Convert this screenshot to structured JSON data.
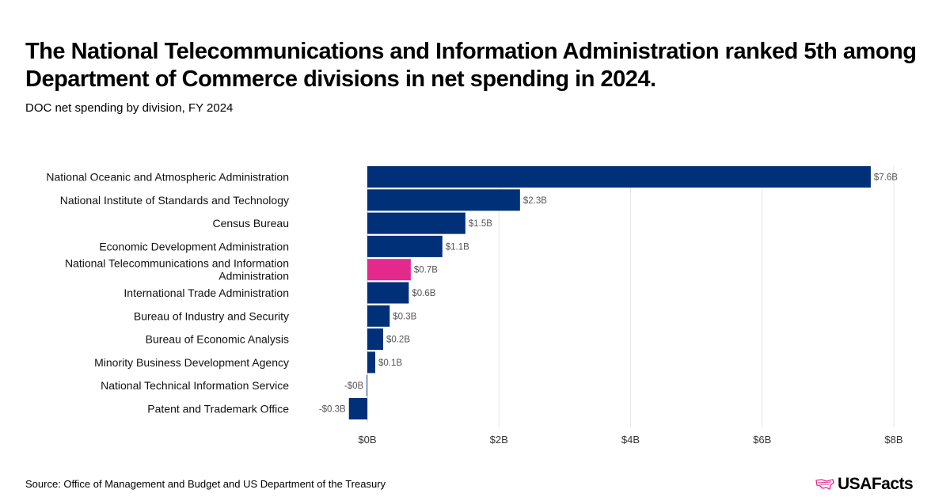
{
  "title": "The National Telecommunications and Information Administration ranked 5th among Department of Commerce divisions in net spending in 2024.",
  "subtitle": "DOC net spending by division, FY 2024",
  "source": "Source: Office of Management and Budget and US Department of the Treasury",
  "logo_text": "USAFacts",
  "colors": {
    "bar": "#003078",
    "highlight": "#e4298c",
    "grid": "#e6e6e6"
  },
  "chart_data": {
    "type": "bar",
    "orientation": "horizontal",
    "categories": [
      "National Oceanic and Atmospheric Administration",
      "National Institute of Standards and Technology",
      "Census Bureau",
      "Economic Development Administration",
      "National Telecommunications and Information Administration",
      "International Trade Administration",
      "Bureau of Industry and Security",
      "Bureau of Economic Analysis",
      "Minority Business Development Agency",
      "National Technical Information Service",
      "Patent and Trademark Office"
    ],
    "values": [
      7.65,
      2.32,
      1.49,
      1.14,
      0.66,
      0.63,
      0.34,
      0.24,
      0.12,
      -0.01,
      -0.28
    ],
    "data_labels": [
      "$7.6B",
      "$2.3B",
      "$1.5B",
      "$1.1B",
      "$0.7B",
      "$0.6B",
      "$0.3B",
      "$0.2B",
      "$0.1B",
      "-$0B",
      "-$0.3B"
    ],
    "highlight_index": 4,
    "xlim": [
      -0.3,
      8
    ],
    "xticks": [
      0,
      2,
      4,
      6,
      8
    ],
    "xtick_labels": [
      "$0B",
      "$2B",
      "$4B",
      "$6B",
      "$8B"
    ],
    "grid": true,
    "xlabel": "",
    "ylabel": ""
  }
}
